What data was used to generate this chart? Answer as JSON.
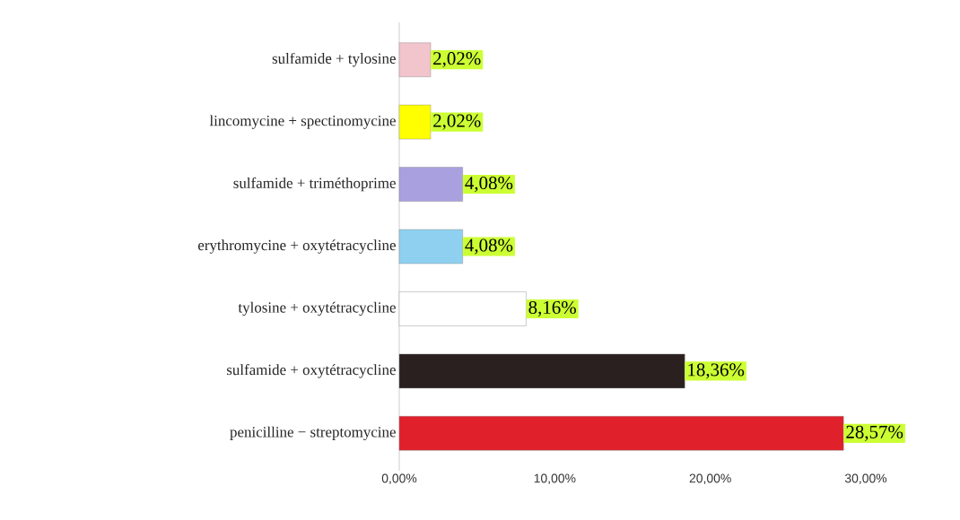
{
  "chart_data": {
    "type": "bar",
    "orientation": "horizontal",
    "categories": [
      "sulfamide + tylosine",
      "lincomycine + spectinomycine",
      "sulfamide + triméthoprime",
      "erythromycine + oxytétracycline",
      "tylosine + oxytétracycline",
      "sulfamide + oxytétracycline",
      "penicilline − streptomycine"
    ],
    "values": [
      2.02,
      2.02,
      4.08,
      4.08,
      8.16,
      18.36,
      28.57
    ],
    "value_labels": [
      "2,02%",
      "2,02%",
      "4,08%",
      "4,08%",
      "8,16%",
      "18,36%",
      "28,57%"
    ],
    "colors": [
      "#f2c4cc",
      "#ffff00",
      "#a9a0e0",
      "#8fd0f0",
      "#ffffff",
      "#2a2020",
      "#e0202a"
    ],
    "xlim": [
      0,
      30
    ],
    "xticks": [
      {
        "value": 0,
        "label": "0,00%"
      },
      {
        "value": 10,
        "label": "10,00%"
      },
      {
        "value": 20,
        "label": "20,00%"
      },
      {
        "value": 30,
        "label": "30,00%"
      }
    ],
    "grid": false
  }
}
